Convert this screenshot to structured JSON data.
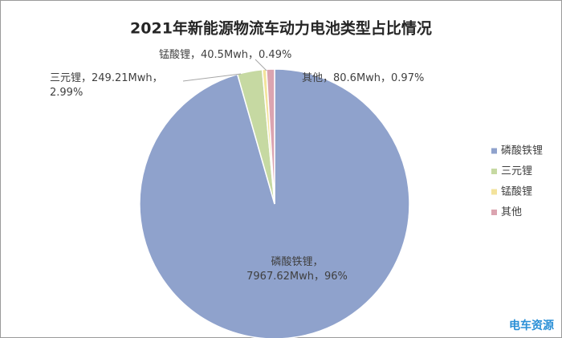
{
  "chart_data": {
    "type": "pie",
    "title": "2021年新能源物流车动力电池类型占比情况",
    "categories": [
      "磷酸铁锂",
      "三元锂",
      "锰酸锂",
      "其他"
    ],
    "values": [
      7967.62,
      249.21,
      40.5,
      80.6
    ],
    "value_labels": [
      [
        "磷酸铁锂，",
        "7967.62Mwh，96%"
      ],
      [
        "三元锂，249.21Mwh，",
        "2.99%"
      ],
      [
        "锰酸锂，40.5Mwh，0.49%"
      ],
      [
        "其他，80.6Mwh，0.97%"
      ]
    ],
    "colors": [
      "#8fa2cc",
      "#c6d9a2",
      "#f3e39c",
      "#dba4b0"
    ],
    "legend": "right",
    "watermark": "电车资源"
  }
}
